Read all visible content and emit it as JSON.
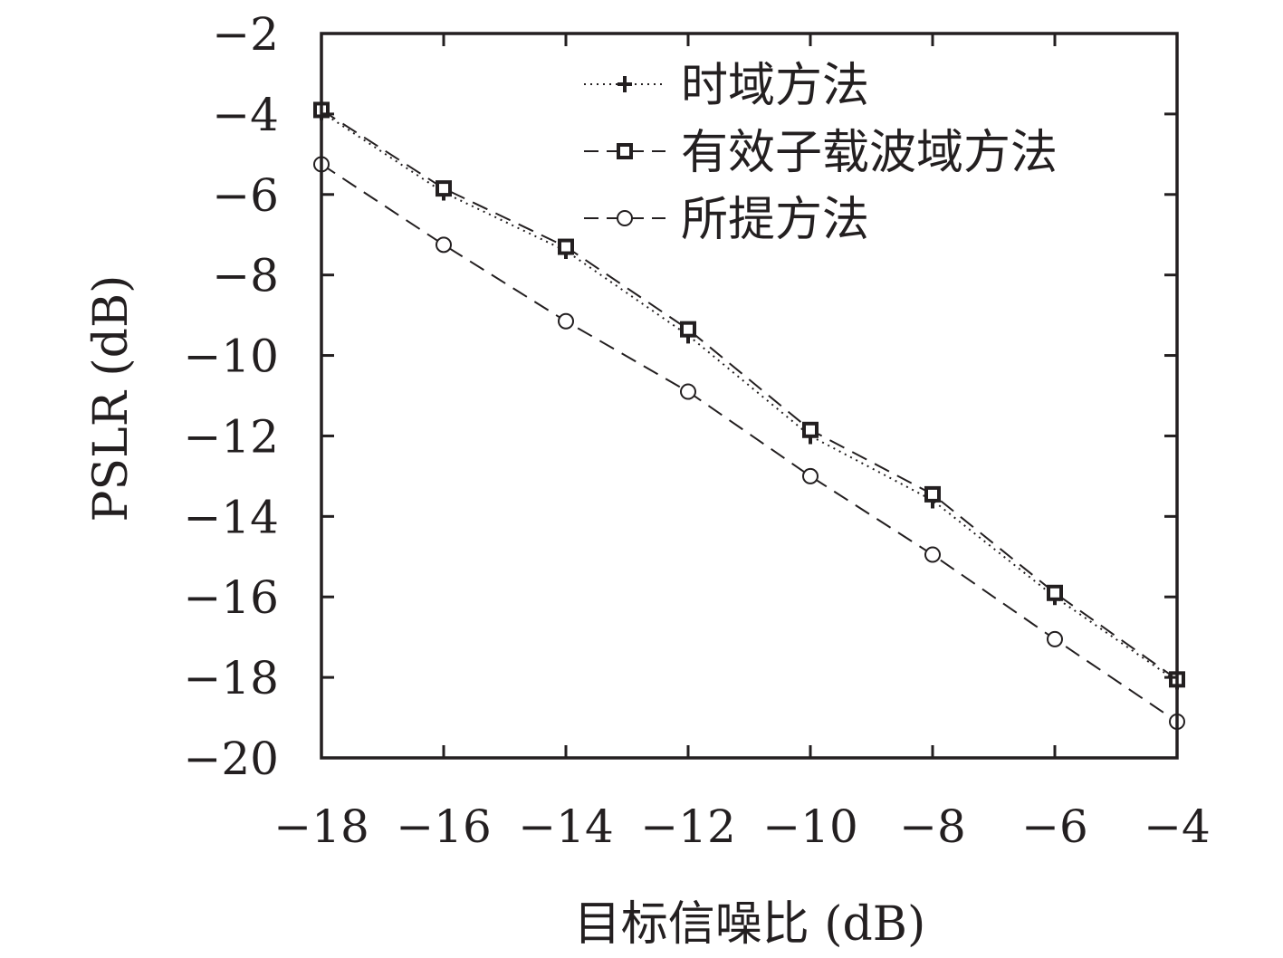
{
  "chart_data": {
    "type": "line",
    "xlabel": "目标信噪比 (dB)",
    "ylabel": "PSLR (dB)",
    "xlim": [
      -18,
      -4
    ],
    "ylim": [
      -20,
      -2
    ],
    "xticks": [
      "−18",
      "−16",
      "−14",
      "−12",
      "−10",
      "−8",
      "−6",
      "−4"
    ],
    "yticks": [
      "−2",
      "−4",
      "−6",
      "−8",
      "−10",
      "−12",
      "−14",
      "−16",
      "−18",
      "−20"
    ],
    "x": [
      -18,
      -16,
      -14,
      -12,
      -10,
      -8,
      -6,
      -4
    ],
    "legend_position": "top-right",
    "grid": false,
    "series": [
      {
        "name": "时域方法",
        "marker": "plus",
        "line": "dotted",
        "values": [
          -3.95,
          -5.95,
          -7.4,
          -9.5,
          -12.0,
          -13.6,
          -16.0,
          -18.1
        ]
      },
      {
        "name": "有效子载波域方法",
        "marker": "square",
        "line": "dashed",
        "values": [
          -3.9,
          -5.85,
          -7.3,
          -9.35,
          -11.85,
          -13.45,
          -15.9,
          -18.05
        ]
      },
      {
        "name": "所提方法",
        "marker": "circle",
        "line": "dashed",
        "values": [
          -5.25,
          -7.25,
          -9.15,
          -10.9,
          -13.0,
          -14.95,
          -17.05,
          -19.1
        ]
      }
    ]
  }
}
